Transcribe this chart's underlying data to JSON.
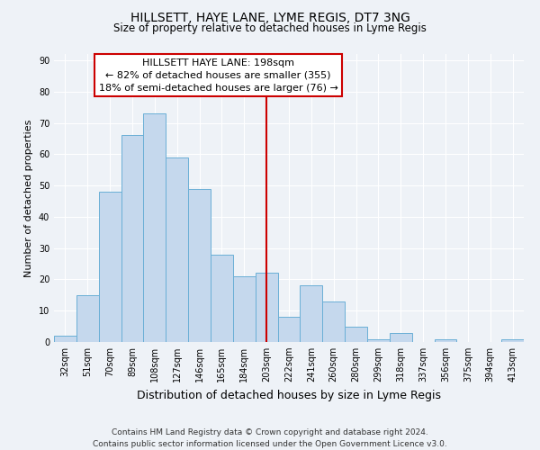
{
  "title": "HILLSETT, HAYE LANE, LYME REGIS, DT7 3NG",
  "subtitle": "Size of property relative to detached houses in Lyme Regis",
  "xlabel": "Distribution of detached houses by size in Lyme Regis",
  "ylabel": "Number of detached properties",
  "categories": [
    "32sqm",
    "51sqm",
    "70sqm",
    "89sqm",
    "108sqm",
    "127sqm",
    "146sqm",
    "165sqm",
    "184sqm",
    "203sqm",
    "222sqm",
    "241sqm",
    "260sqm",
    "280sqm",
    "299sqm",
    "318sqm",
    "337sqm",
    "356sqm",
    "375sqm",
    "394sqm",
    "413sqm"
  ],
  "values": [
    2,
    15,
    48,
    66,
    73,
    59,
    49,
    28,
    21,
    22,
    8,
    18,
    13,
    5,
    1,
    3,
    0,
    1,
    0,
    0,
    1
  ],
  "bar_color": "#c5d8ed",
  "bar_edge_color": "#6aafd6",
  "vline_x": 9,
  "vline_color": "#cc0000",
  "annotation_title": "HILLSETT HAYE LANE: 198sqm",
  "annotation_line1": "← 82% of detached houses are smaller (355)",
  "annotation_line2": "18% of semi-detached houses are larger (76) →",
  "annotation_box_color": "#ffffff",
  "annotation_box_edge": "#cc0000",
  "ylim": [
    0,
    92
  ],
  "yticks": [
    0,
    10,
    20,
    30,
    40,
    50,
    60,
    70,
    80,
    90
  ],
  "footer_line1": "Contains HM Land Registry data © Crown copyright and database right 2024.",
  "footer_line2": "Contains public sector information licensed under the Open Government Licence v3.0.",
  "background_color": "#eef2f7",
  "grid_color": "#ffffff",
  "title_fontsize": 10,
  "subtitle_fontsize": 8.5,
  "xlabel_fontsize": 9,
  "ylabel_fontsize": 8,
  "tick_fontsize": 7,
  "annotation_title_fontsize": 8,
  "annotation_body_fontsize": 8,
  "footer_fontsize": 6.5
}
